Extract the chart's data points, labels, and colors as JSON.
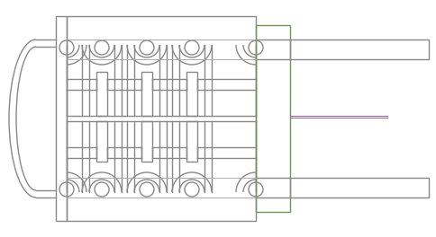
{
  "bg_color": "#ffffff",
  "line_color": "#888888",
  "line_color2": "#aaaaaa",
  "green_color": "#6a9955",
  "purple_color": "#9b59b6",
  "fig_w": 4.84,
  "fig_h": 2.64,
  "dpi": 100,
  "lw": 1.0,
  "lw2": 0.7
}
